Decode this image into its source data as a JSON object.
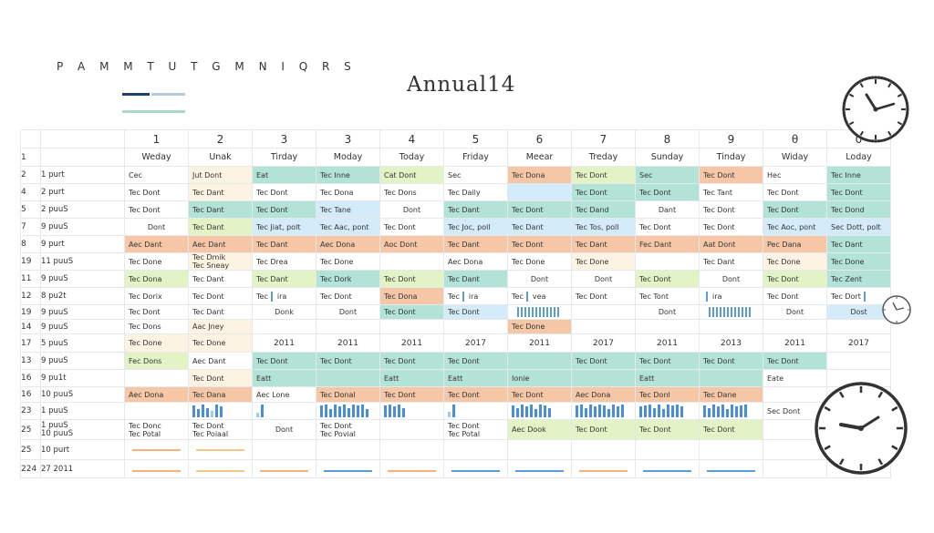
{
  "header": {
    "letters": "P A M M T U T G M N I Q R S",
    "title": "Annual14"
  },
  "swatch_colors": [
    "#1f3f75",
    "#b9c8dc",
    "#a9d9c4"
  ],
  "colors": {
    "g": "#b3e3d6",
    "lg": "#d9efe8",
    "y": "#e2f4c6",
    "o": "#f6c7a6",
    "b": "#d4ebfa",
    "cr": "#fdf3e2",
    "bar": "#4a8fd6"
  },
  "columns": {
    "numbers": [
      "1",
      "2",
      "3",
      "3",
      "4",
      "5",
      "6",
      "7",
      "8",
      "9",
      "θ",
      "0"
    ],
    "days": [
      "Weday",
      "Unak",
      "Tirday",
      "Moday",
      "Today",
      "Friday",
      "Meear",
      "Treday",
      "Sunday",
      "Tinday",
      "Widay",
      "Loday"
    ]
  },
  "rows": [
    {
      "num": "2",
      "lab": "1 purt",
      "cells": [
        [
          "w",
          "Cec"
        ],
        [
          "cr",
          "Jut Dont"
        ],
        [
          "g",
          "Eat"
        ],
        [
          "g",
          "Tec Inne"
        ],
        [
          "y",
          "Cat Dont"
        ],
        [
          "w",
          "Sec"
        ],
        [
          "o",
          "Tec Dona"
        ],
        [
          "y",
          "Tec Dont"
        ],
        [
          "g",
          "Sec"
        ],
        [
          "o",
          "Tec Dont"
        ],
        [
          "w",
          "Hec"
        ],
        [
          "g",
          "Tec Inne"
        ]
      ]
    },
    {
      "num": "4",
      "lab": "2 purt",
      "cells": [
        [
          "w",
          "Tec Dont"
        ],
        [
          "cr",
          "Tec Dant"
        ],
        [
          "w",
          "Tec Dont"
        ],
        [
          "w",
          "Tec Dona"
        ],
        [
          "w",
          "Tec Dons"
        ],
        [
          "w",
          "Tec Daily"
        ],
        [
          "b",
          ""
        ],
        [
          "g",
          "Tec Dont"
        ],
        [
          "g",
          "Tec Dont"
        ],
        [
          "w",
          "Tec Tant"
        ],
        [
          "w",
          "Tec Dont"
        ],
        [
          "g",
          "Tec Dont"
        ]
      ]
    },
    {
      "num": "5",
      "lab": "2 puuS",
      "cells": [
        [
          "w",
          "Tec Dont"
        ],
        [
          "g",
          "Tec Dant"
        ],
        [
          "g",
          "Tec Dont"
        ],
        [
          "b",
          "Tec Tane"
        ],
        [
          "w",
          "Dont"
        ],
        [
          "g",
          "Tec Dant"
        ],
        [
          "g",
          "Tec Dont"
        ],
        [
          "g",
          "Tec Dand"
        ],
        [
          "w",
          "Dant"
        ],
        [
          "w",
          "Tec Dont"
        ],
        [
          "g",
          "Tec Dont"
        ],
        [
          "g",
          "Tec Dond"
        ]
      ]
    },
    {
      "num": "7",
      "lab": "9 puuS",
      "cells": [
        [
          "w",
          "Dont"
        ],
        [
          "y",
          "Tec Dant"
        ],
        [
          "b",
          "Tec Jiat, polt"
        ],
        [
          "b",
          "Tec Aac, pont"
        ],
        [
          "w",
          "Tec Dont"
        ],
        [
          "b",
          "Tec Joc, poll"
        ],
        [
          "b",
          "Tec Dant"
        ],
        [
          "b",
          "Tec Tos, poll"
        ],
        [
          "w",
          "Tec Dont"
        ],
        [
          "w",
          "Tec Dont"
        ],
        [
          "b",
          "Tec Aoc, pont"
        ],
        [
          "b",
          "Sec Dott, polt"
        ]
      ]
    },
    {
      "num": "8",
      "lab": "9 purt",
      "cells": [
        [
          "o",
          "Aec Dant"
        ],
        [
          "o",
          "Aec Dant"
        ],
        [
          "o",
          "Tec Dant"
        ],
        [
          "o",
          "Aec Dona"
        ],
        [
          "o",
          "Aoc Dont"
        ],
        [
          "o",
          "Tec Dant"
        ],
        [
          "o",
          "Tec Dont"
        ],
        [
          "o",
          "Tec Dant"
        ],
        [
          "o",
          "Fec Dant"
        ],
        [
          "o",
          "Aat Dont"
        ],
        [
          "o",
          "Pec Dana"
        ],
        [
          "g",
          "Tec Dant"
        ]
      ]
    },
    {
      "num": "19",
      "lab": "11 puuS",
      "cells": [
        [
          "w",
          "Tec Done"
        ],
        [
          "cr",
          "Tec Dmik|Tec Sneay"
        ],
        [
          "w",
          "Tec Drea"
        ],
        [
          "w",
          "Tec Done"
        ],
        [
          "w",
          ""
        ],
        [
          "w",
          "Aec Dona"
        ],
        [
          "w",
          "Tec Done"
        ],
        [
          "cr",
          "Tec Done"
        ],
        [
          "w",
          ""
        ],
        [
          "w",
          "Tec Dant"
        ],
        [
          "cr",
          "Tec Done"
        ],
        [
          "g",
          "Tec Done"
        ]
      ]
    },
    {
      "num": "11",
      "lab": "9 puuS",
      "cells": [
        [
          "y",
          "Tec Dona"
        ],
        [
          "w",
          "Tec Dant"
        ],
        [
          "y",
          "Tec Dant"
        ],
        [
          "g",
          "Tec Dork"
        ],
        [
          "y",
          "Tec Dont"
        ],
        [
          "g",
          "Tec Dant"
        ],
        [
          "w",
          "Dont"
        ],
        [
          "w",
          "Dont"
        ],
        [
          "y",
          "Tec Dont"
        ],
        [
          "w",
          "Dont"
        ],
        [
          "y",
          "Tec Dont"
        ],
        [
          "g",
          "Tec Zent"
        ]
      ]
    },
    {
      "num": "12",
      "lab": "8 pu2t",
      "cells": [
        [
          "w",
          "Tec Dorix"
        ],
        [
          "w",
          "Tec Dont"
        ],
        [
          "w",
          "Tec|ira"
        ],
        [
          "w",
          "Tec Dont"
        ],
        [
          "o",
          "Tec Dona"
        ],
        [
          "w",
          "Tec|ira"
        ],
        [
          "w",
          "Tec|vea"
        ],
        [
          "w",
          "Tec Dont"
        ],
        [
          "w",
          "Tec Tont"
        ],
        [
          "w",
          "|ira"
        ],
        [
          "w",
          "Tec Dont"
        ],
        [
          "w",
          "Tec Dort|"
        ]
      ]
    },
    {
      "num": "19",
      "lab": "9 puuS",
      "cells": [
        [
          "w",
          "Tec Dont"
        ],
        [
          "w",
          "Tec Dant"
        ],
        [
          "w",
          "Donk"
        ],
        [
          "w",
          "Dont"
        ],
        [
          "g",
          "Tec Dont"
        ],
        [
          "b",
          "Tec Dont"
        ],
        [
          "w",
          ""
        ],
        [
          "w",
          ""
        ],
        [
          "w",
          "Dont"
        ],
        [
          "w",
          ""
        ],
        [
          "w",
          "Dont"
        ],
        [
          "b",
          "Dost"
        ]
      ]
    },
    {
      "num": "14",
      "lab": "9 puuS",
      "cells": [
        [
          "w",
          "Tec Dons"
        ],
        [
          "cr",
          "Aac Jney"
        ],
        [
          "w",
          ""
        ],
        [
          "w",
          ""
        ],
        [
          "w",
          ""
        ],
        [
          "w",
          ""
        ],
        [
          "o",
          "Tec Done"
        ],
        [
          "w",
          ""
        ],
        [
          "w",
          ""
        ],
        [
          "w",
          ""
        ],
        [
          "w",
          ""
        ],
        [
          "w",
          ""
        ]
      ]
    },
    {
      "num": "17",
      "lab": "5 puuS",
      "cells": [
        [
          "cr",
          "Tec Done"
        ],
        [
          "cr",
          "Tec Done"
        ],
        [
          "w",
          "2011"
        ],
        [
          "w",
          "2011"
        ],
        [
          "w",
          "2011"
        ],
        [
          "w",
          "2017"
        ],
        [
          "w",
          "2011"
        ],
        [
          "w",
          "2017"
        ],
        [
          "w",
          "2011"
        ],
        [
          "w",
          "2013"
        ],
        [
          "w",
          "2011"
        ],
        [
          "w",
          "2017"
        ]
      ]
    },
    {
      "num": "13",
      "lab": "9 puuS",
      "cells": [
        [
          "y",
          "Fec Dons"
        ],
        [
          "w",
          "Aec Dant"
        ],
        [
          "g",
          "Tec Dont"
        ],
        [
          "g",
          "Tec Dont"
        ],
        [
          "g",
          "Tec Dont"
        ],
        [
          "g",
          "Tec Dont"
        ],
        [
          "g",
          ""
        ],
        [
          "g",
          "Tec Dont"
        ],
        [
          "g",
          "Tec Dont"
        ],
        [
          "g",
          "Tec Dont"
        ],
        [
          "g",
          "Tec Dont"
        ],
        [
          "w",
          ""
        ]
      ]
    },
    {
      "num": "16",
      "lab": "9 pu1t",
      "cells": [
        [
          "w",
          ""
        ],
        [
          "cr",
          "Tec Dont"
        ],
        [
          "g",
          "Eatt"
        ],
        [
          "g",
          ""
        ],
        [
          "g",
          "Eatt"
        ],
        [
          "g",
          "Eatt"
        ],
        [
          "g",
          "Ionie"
        ],
        [
          "g",
          ""
        ],
        [
          "g",
          "Eatt"
        ],
        [
          "g",
          ""
        ],
        [
          "w",
          "Eate"
        ],
        [
          "w",
          ""
        ]
      ]
    },
    {
      "num": "16",
      "lab": "10 puuS",
      "cells": [
        [
          "o",
          "Aec Dona"
        ],
        [
          "o",
          "Tec Dana"
        ],
        [
          "w",
          "Aec Lone"
        ],
        [
          "o",
          "Tec Donal"
        ],
        [
          "o",
          "Tec Dont"
        ],
        [
          "o",
          "Tec Dont"
        ],
        [
          "o",
          "Tec Dont"
        ],
        [
          "o",
          "Aec Dona"
        ],
        [
          "o",
          "Tec Donl"
        ],
        [
          "o",
          "Tec Dane"
        ],
        [
          "w",
          ""
        ],
        [
          "w",
          ""
        ]
      ]
    },
    {
      "num": "23",
      "lab": "1 puuS",
      "cells": [
        [
          "w",
          ""
        ],
        [
          "w",
          ""
        ],
        [
          "w",
          ""
        ],
        [
          "w",
          ""
        ],
        [
          "w",
          ""
        ],
        [
          "w",
          ""
        ],
        [
          "w",
          ""
        ],
        [
          "w",
          ""
        ],
        [
          "w",
          ""
        ],
        [
          "w",
          ""
        ],
        [
          "w",
          "Sec Dont"
        ],
        [
          "w",
          ""
        ]
      ]
    },
    {
      "num": "25",
      "lab": "1 puuS|10 puuS",
      "cells": [
        [
          "w",
          "Tec Donc|Tec Potal"
        ],
        [
          "w",
          "Tec Dont|Tec Poiaal"
        ],
        [
          "w",
          "Dont"
        ],
        [
          "w",
          "Tec Dont|Tec Povial"
        ],
        [
          "w",
          ""
        ],
        [
          "w",
          "Tec Dont|Tec Potal"
        ],
        [
          "y",
          "Aec Dook"
        ],
        [
          "y",
          "Tec Dont"
        ],
        [
          "y",
          "Tec Dont"
        ],
        [
          "y",
          "Tec Dont"
        ],
        [
          "w",
          ""
        ],
        [
          "w",
          ""
        ]
      ]
    },
    {
      "num": "25",
      "lab": "10 purt",
      "cells": [
        [
          "w",
          ""
        ],
        [
          "w",
          ""
        ],
        [
          "w",
          ""
        ],
        [
          "w",
          ""
        ],
        [
          "w",
          ""
        ],
        [
          "w",
          ""
        ],
        [
          "w",
          ""
        ],
        [
          "w",
          ""
        ],
        [
          "w",
          ""
        ],
        [
          "w",
          ""
        ],
        [
          "w",
          ""
        ],
        [
          "w",
          ""
        ]
      ]
    },
    {
      "num": "224",
      "lab": "27 2011",
      "cells": [
        [
          "w",
          ""
        ],
        [
          "w",
          ""
        ],
        [
          "w",
          ""
        ],
        [
          "w",
          ""
        ],
        [
          "w",
          ""
        ],
        [
          "w",
          ""
        ],
        [
          "w",
          ""
        ],
        [
          "w",
          ""
        ],
        [
          "w",
          ""
        ],
        [
          "w",
          ""
        ],
        [
          "w",
          ""
        ],
        [
          "w",
          ""
        ]
      ]
    }
  ],
  "bar_heights": [
    [
      0,
      0,
      0,
      0,
      0,
      0,
      0,
      0,
      0,
      0,
      0,
      0,
      0,
      0,
      0,
      0,
      0,
      0,
      0,
      0
    ],
    [
      0.9,
      0.6,
      1,
      0.7,
      0.5,
      1,
      0.8
    ],
    [
      0.3,
      1
    ],
    [
      0.9,
      1,
      0.6,
      1,
      0.8,
      1,
      0.7,
      1,
      0.9,
      1,
      0.6
    ],
    [
      0.9,
      1,
      0.8,
      1,
      0.7
    ],
    [
      0.4,
      1
    ],
    [
      0.9,
      0.7,
      1,
      0.8,
      1,
      0.6,
      1,
      0.9,
      0.7
    ],
    [
      0.9,
      1,
      0.7,
      1,
      0.8,
      1,
      0.9,
      0.6,
      1,
      0.8,
      1
    ],
    [
      0.8,
      0.9,
      1,
      0.7,
      1,
      0.6,
      1,
      0.9,
      1,
      0.8
    ],
    [
      0.9,
      0.7,
      1,
      0.8,
      1,
      0.6,
      1,
      0.8,
      0.9,
      1
    ],
    [
      0.8,
      1,
      0.9,
      0.7,
      1,
      0.8,
      1,
      0.9,
      0.6,
      1,
      0.8
    ]
  ],
  "underline_colors": [
    "#f4b27f",
    "#f3c98a",
    "#f4b27f",
    "#5b9bd8",
    "#f4b27f",
    "#5b9bd8",
    "#5b9bd8",
    "#f4b27f",
    "#5b9bd8",
    "#5b9bd8",
    "#ffffff",
    "#ffffff"
  ]
}
